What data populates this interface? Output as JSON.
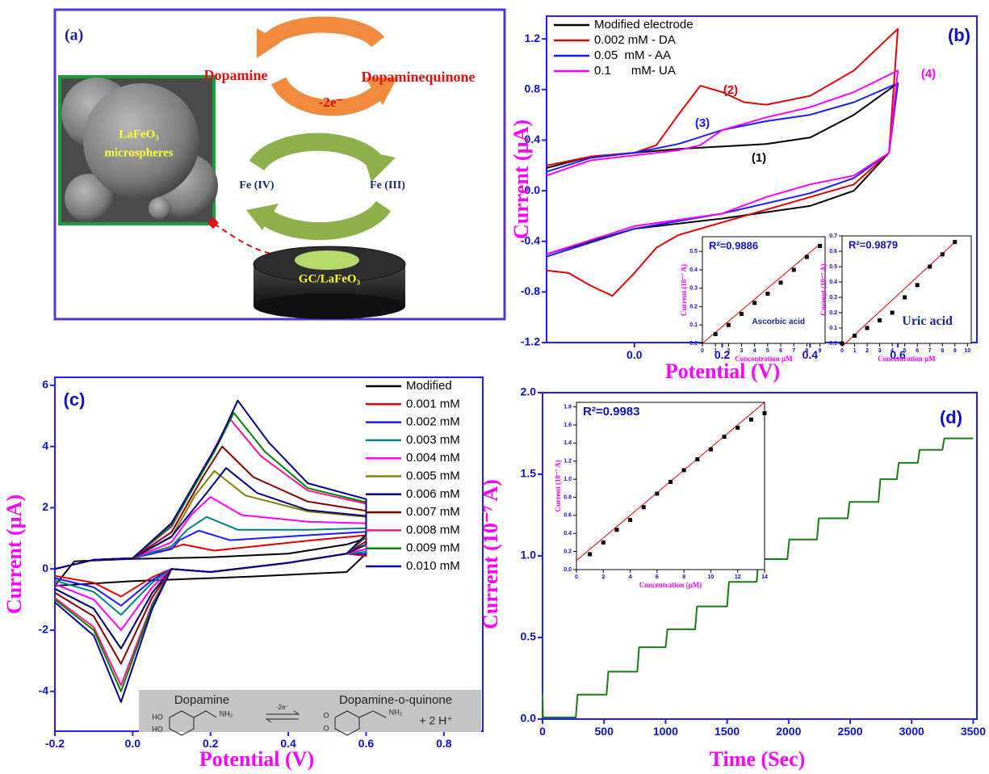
{
  "diagram": {
    "panel_label": "(a)",
    "sem_label": [
      "LaFeO₃",
      "microspheres"
    ],
    "reactant": "Dopamine",
    "product": "Dopaminequinone",
    "electrons": "-2e⁻",
    "oxidized": "Fe (IV)",
    "reduced": "Fe (III)",
    "electrode": "GC/LaFeO₃"
  },
  "chart_data": [
    {
      "type": "line",
      "panel_label": "(b)",
      "xlabel": "Potential (V)",
      "ylabel": "Current (µA)",
      "legend": "upper left",
      "xlim": [
        -0.2,
        0.78
      ],
      "ylim": [
        -1.2,
        1.38
      ],
      "xticks": [
        {
          "value": 0,
          "label": "0.0"
        },
        0.2,
        0.4,
        0.6
      ],
      "yticks": [
        -1.2,
        -0.8,
        -0.4,
        {
          "value": 0,
          "label": "0.0"
        },
        0.4,
        0.8,
        1.2
      ],
      "series": [
        {
          "name": "Modified electrode",
          "color": "#000000",
          "x": [
            -0.2,
            -0.1,
            0.1,
            0.3,
            0.4,
            0.5,
            0.6,
            0.58,
            0.5,
            0.4,
            0.2,
            0.0,
            -0.1,
            -0.2
          ],
          "values": [
            0.18,
            0.27,
            0.33,
            0.37,
            0.42,
            0.6,
            0.85,
            0.3,
            0.0,
            -0.12,
            -0.22,
            -0.3,
            -0.4,
            -0.5
          ]
        },
        {
          "name": "0.002 mM - DA",
          "color": "#e00000",
          "x": [
            -0.2,
            -0.1,
            0.0,
            0.05,
            0.1,
            0.15,
            0.2,
            0.25,
            0.3,
            0.4,
            0.5,
            0.6,
            0.58,
            0.5,
            0.4,
            0.3,
            0.2,
            0.1,
            0.05,
            0.0,
            -0.05,
            -0.1,
            -0.15,
            -0.2
          ],
          "values": [
            0.2,
            0.27,
            0.3,
            0.36,
            0.6,
            0.83,
            0.78,
            0.7,
            0.68,
            0.75,
            0.95,
            1.28,
            0.3,
            0.05,
            -0.05,
            -0.15,
            -0.25,
            -0.35,
            -0.45,
            -0.65,
            -0.83,
            -0.75,
            -0.65,
            -0.63
          ]
        },
        {
          "name": "0.05  mM - AA",
          "color": "#1a1aff",
          "x": [
            -0.2,
            -0.1,
            0.0,
            0.1,
            0.2,
            0.3,
            0.4,
            0.5,
            0.6,
            0.58,
            0.5,
            0.4,
            0.2,
            0.0,
            -0.2
          ],
          "values": [
            0.15,
            0.26,
            0.3,
            0.37,
            0.48,
            0.55,
            0.6,
            0.7,
            0.85,
            0.3,
            0.1,
            -0.02,
            -0.18,
            -0.3,
            -0.52
          ]
        },
        {
          "name": "0.1      mM- UA",
          "color": "#ff00ff",
          "x": [
            -0.2,
            -0.1,
            0.0,
            0.1,
            0.15,
            0.2,
            0.3,
            0.4,
            0.5,
            0.6,
            0.58,
            0.5,
            0.4,
            0.3,
            0.2,
            0.0,
            -0.2
          ],
          "values": [
            0.12,
            0.24,
            0.28,
            0.32,
            0.36,
            0.48,
            0.58,
            0.66,
            0.78,
            0.95,
            0.3,
            0.12,
            0.05,
            -0.05,
            -0.18,
            -0.28,
            -0.5
          ]
        }
      ],
      "annotations": [
        {
          "text": "(1)",
          "color": "#000000"
        },
        {
          "text": "(2)",
          "color": "#e00000"
        },
        {
          "text": "(3)",
          "color": "#1a1aff"
        },
        {
          "text": "(4)",
          "color": "#ff00ff"
        }
      ],
      "insets": [
        {
          "type": "scatter",
          "r_squared": "R²=0.9886",
          "label": "Ascorbic acid",
          "xlabel": "Concentration µM",
          "ylabel": "Current (10⁻⁷ A)",
          "xlim": [
            0,
            9.4
          ],
          "ylim": [
            0,
            0.58
          ],
          "xticks": [
            0,
            1,
            2,
            3,
            4,
            5,
            6,
            7,
            8,
            9
          ],
          "yticks": [
            {
              "value": 0,
              "label": "0.0"
            },
            0.1,
            0.2,
            0.3,
            0.4,
            0.5
          ],
          "color": "#000000",
          "x": [
            1,
            2,
            3,
            4,
            5,
            6,
            7,
            8,
            9
          ],
          "values": [
            0.05,
            0.1,
            0.16,
            0.22,
            0.27,
            0.33,
            0.4,
            0.47,
            0.53
          ],
          "fit": {
            "color": "#e00000",
            "x": [
              0,
              9
            ],
            "values": [
              0.0,
              0.54
            ]
          }
        },
        {
          "type": "scatter",
          "r_squared": "R²=0.9879",
          "label": "Uric acid",
          "xlabel": "Concentration µM",
          "ylabel": "Current (10⁻⁷ A)",
          "xlim": [
            0,
            10.3
          ],
          "ylim": [
            0,
            0.7
          ],
          "xticks": [
            0,
            1,
            2,
            3,
            4,
            5,
            6,
            7,
            8,
            9,
            10
          ],
          "yticks": [
            {
              "value": 0,
              "label": "0.0"
            },
            0.1,
            0.2,
            0.3,
            0.4,
            0.5,
            0.6,
            0.7
          ],
          "color": "#000000",
          "x": [
            0,
            1,
            2,
            3,
            4,
            5,
            6,
            7,
            8,
            9
          ],
          "values": [
            0.0,
            0.05,
            0.1,
            0.15,
            0.2,
            0.3,
            0.38,
            0.5,
            0.58,
            0.66
          ],
          "fit": {
            "color": "#e00000",
            "x": [
              0,
              9
            ],
            "values": [
              -0.02,
              0.66
            ]
          }
        }
      ]
    },
    {
      "type": "line",
      "panel_label": "(c)",
      "xlabel": "Potential (V)",
      "ylabel": "Current (µA)",
      "legend": "upper right",
      "xlim": [
        -0.2,
        0.9
      ],
      "ylim": [
        -5.3,
        6.26
      ],
      "xticks": [
        -0.2,
        {
          "value": 0,
          "label": "0.0"
        },
        0.2,
        0.4,
        0.6,
        0.8
      ],
      "yticks": [
        -4,
        -2,
        0,
        2,
        4,
        6
      ],
      "series": [
        {
          "name": "Modified",
          "color": "#000000",
          "x": [
            -0.2,
            -0.15,
            0.0,
            0.2,
            0.4,
            0.55,
            0.6,
            0.6,
            0.55,
            0.3,
            0.0,
            -0.2
          ],
          "values": [
            -0.55,
            0.25,
            0.33,
            0.38,
            0.5,
            0.8,
            1.0,
            0.5,
            -0.1,
            -0.25,
            -0.4,
            -0.55
          ]
        },
        {
          "name": "0.001 mM",
          "color": "#e00000",
          "x": [
            -0.2,
            -0.1,
            0.0,
            0.08,
            0.13,
            0.21,
            0.45,
            0.6,
            0.6,
            0.55,
            0.4,
            0.2,
            0.1,
            0.05,
            -0.03,
            -0.1,
            -0.2
          ],
          "values": [
            0.0,
            0.3,
            0.35,
            0.6,
            0.8,
            0.6,
            0.92,
            1.1,
            0.42,
            0.5,
            0.2,
            -0.1,
            0.0,
            -0.27,
            -0.9,
            -0.45,
            -0.23
          ]
        },
        {
          "name": "0.002 mM",
          "color": "#1a1aff",
          "x": [
            -0.2,
            -0.1,
            0.0,
            0.1,
            0.12,
            0.17,
            0.25,
            0.45,
            0.6,
            0.6,
            0.55,
            0.4,
            0.2,
            0.1,
            0.05,
            -0.03,
            -0.1,
            -0.2
          ],
          "values": [
            0.0,
            0.3,
            0.35,
            0.65,
            0.94,
            1.25,
            0.94,
            1.1,
            1.21,
            0.49,
            0.5,
            0.2,
            -0.1,
            0.0,
            -0.36,
            -1.2,
            -0.6,
            -0.3
          ]
        },
        {
          "name": "0.003 mM",
          "color": "#008080",
          "x": [
            -0.2,
            -0.1,
            0.0,
            0.1,
            0.14,
            0.19,
            0.27,
            0.45,
            0.6,
            0.6,
            0.55,
            0.4,
            0.2,
            0.1,
            0.05,
            -0.03,
            -0.1,
            -0.2
          ],
          "values": [
            0.0,
            0.3,
            0.35,
            0.74,
            1.28,
            1.7,
            1.28,
            1.28,
            1.33,
            0.56,
            0.5,
            0.2,
            -0.1,
            0.0,
            -0.45,
            -1.5,
            -0.75,
            -0.38
          ]
        },
        {
          "name": "0.004 mM",
          "color": "#ff00ff",
          "x": [
            -0.2,
            -0.1,
            0.0,
            0.1,
            0.15,
            0.2,
            0.28,
            0.45,
            0.6,
            0.6,
            0.55,
            0.4,
            0.2,
            0.1,
            0.05,
            -0.03,
            -0.1,
            -0.2
          ],
          "values": [
            0.0,
            0.3,
            0.35,
            0.87,
            1.76,
            2.35,
            1.76,
            1.54,
            1.49,
            0.65,
            0.5,
            0.2,
            -0.1,
            0.0,
            -0.6,
            -2.0,
            -1.0,
            -0.5
          ]
        },
        {
          "name": "0.005 mM",
          "color": "#808000",
          "x": [
            -0.2,
            -0.1,
            0.0,
            0.1,
            0.16,
            0.21,
            0.29,
            0.45,
            0.6,
            0.6,
            0.55,
            0.4,
            0.2,
            0.1,
            0.05,
            -0.03,
            -0.1,
            -0.2
          ],
          "values": [
            0.0,
            0.3,
            0.35,
            1.04,
            2.4,
            3.2,
            2.4,
            1.88,
            1.7,
            0.78,
            0.5,
            0.2,
            -0.1,
            0.0,
            -0.78,
            -2.6,
            -1.3,
            -0.65
          ]
        },
        {
          "name": "0.006 mM",
          "color": "#000080",
          "x": [
            -0.2,
            -0.1,
            0.0,
            0.1,
            0.19,
            0.24,
            0.32,
            0.45,
            0.6,
            0.6,
            0.55,
            0.4,
            0.2,
            0.1,
            0.05,
            -0.03,
            -0.1,
            -0.2
          ],
          "values": [
            0.0,
            0.3,
            0.35,
            1.06,
            2.48,
            3.3,
            2.48,
            1.92,
            1.73,
            0.8,
            0.5,
            0.2,
            -0.1,
            0.0,
            -0.78,
            -2.6,
            -1.3,
            -0.65
          ]
        },
        {
          "name": "0.007 mM",
          "color": "#800000",
          "x": [
            -0.2,
            -0.1,
            0.0,
            0.1,
            0.18,
            0.23,
            0.31,
            0.45,
            0.6,
            0.6,
            0.55,
            0.4,
            0.2,
            0.1,
            0.05,
            -0.03,
            -0.1,
            -0.2
          ],
          "values": [
            0.0,
            0.3,
            0.35,
            1.2,
            3.0,
            4.0,
            3.0,
            2.2,
            1.9,
            0.9,
            0.5,
            0.2,
            -0.1,
            0.0,
            -0.93,
            -3.1,
            -1.55,
            -0.78
          ]
        },
        {
          "name": "0.008 mM",
          "color": "#ff1493",
          "x": [
            -0.2,
            -0.1,
            0.0,
            0.1,
            0.2,
            0.25,
            0.33,
            0.45,
            0.6,
            0.6,
            0.55,
            0.4,
            0.2,
            0.1,
            0.05,
            -0.03,
            -0.1,
            -0.2
          ],
          "values": [
            0.0,
            0.3,
            0.35,
            1.38,
            3.68,
            4.9,
            3.68,
            2.56,
            2.13,
            1.04,
            0.5,
            0.2,
            -0.1,
            0.0,
            -1.14,
            -3.8,
            -1.9,
            -0.95
          ]
        },
        {
          "name": "0.009 mM",
          "color": "#008000",
          "x": [
            -0.2,
            -0.1,
            0.0,
            0.1,
            0.21,
            0.26,
            0.34,
            0.45,
            0.6,
            0.6,
            0.55,
            0.4,
            0.2,
            0.1,
            0.05,
            -0.03,
            -0.1,
            -0.2
          ],
          "values": [
            0.0,
            0.3,
            0.35,
            1.42,
            3.83,
            5.1,
            3.83,
            2.64,
            2.18,
            1.07,
            0.5,
            0.2,
            -0.1,
            0.0,
            -1.2,
            -4.0,
            -2.0,
            -1.0
          ]
        },
        {
          "name": "0.010 mM",
          "color": "#00008b",
          "x": [
            -0.2,
            -0.1,
            0.0,
            0.1,
            0.22,
            0.27,
            0.35,
            0.45,
            0.6,
            0.6,
            0.55,
            0.4,
            0.2,
            0.1,
            0.05,
            -0.03,
            -0.1,
            -0.2
          ],
          "values": [
            0.0,
            0.3,
            0.35,
            1.5,
            4.13,
            5.5,
            4.13,
            2.8,
            2.28,
            1.13,
            0.5,
            0.2,
            -0.1,
            0.0,
            -1.31,
            -4.35,
            -2.18,
            -1.09
          ]
        }
      ],
      "scheme": {
        "reactant": "Dopamine",
        "product": "Dopamine-o-quinone",
        "electrons": "-2e⁻",
        "protons": "+ 2 H⁺",
        "groups": [
          "HO",
          "HO",
          "NH₂",
          "O",
          "O",
          "NH₂"
        ]
      }
    },
    {
      "type": "line",
      "panel_label": "(d)",
      "xlabel": "Time (Sec)",
      "ylabel": "Current (10⁻⁷ A)",
      "xlim": [
        0,
        3530
      ],
      "ylim": [
        0,
        2.0
      ],
      "xticks": [
        0,
        500,
        1000,
        1500,
        2000,
        2500,
        3000,
        3500
      ],
      "yticks": [
        {
          "value": 0,
          "label": "0.0"
        },
        0.5,
        {
          "value": 1,
          "label": "1.0"
        },
        1.5,
        {
          "value": 2,
          "label": "2.0"
        }
      ],
      "series": [
        {
          "color": "#1a7a1a",
          "x": [
            0,
            3,
            270,
            285,
            520,
            535,
            770,
            785,
            1000,
            1015,
            1240,
            1255,
            1500,
            1515,
            1740,
            1755,
            1990,
            2005,
            2230,
            2245,
            2480,
            2495,
            2730,
            2745,
            2880,
            2895,
            3050,
            3065,
            3250,
            3265,
            3500
          ],
          "values": [
            0.15,
            0.01,
            0.01,
            0.15,
            0.15,
            0.29,
            0.29,
            0.44,
            0.44,
            0.55,
            0.55,
            0.69,
            0.69,
            0.84,
            0.84,
            0.98,
            0.98,
            1.1,
            1.1,
            1.23,
            1.23,
            1.33,
            1.33,
            1.47,
            1.47,
            1.57,
            1.57,
            1.65,
            1.65,
            1.72,
            1.72
          ]
        }
      ],
      "insets": [
        {
          "type": "scatter",
          "r_squared": "R²=0.9983",
          "xlabel": "Concentration (µM)",
          "ylabel": "Current (10⁻⁷ A)",
          "xlim": [
            0,
            14
          ],
          "ylim": [
            0,
            1.85
          ],
          "xticks": [
            0,
            2,
            4,
            6,
            8,
            10,
            12,
            14
          ],
          "yticks": [
            {
              "value": 0,
              "label": "0.0"
            },
            0.2,
            0.4,
            0.6,
            0.8,
            {
              "value": 1,
              "label": "1.0"
            },
            1.2,
            1.4,
            1.6,
            1.8
          ],
          "color": "#000000",
          "x": [
            1,
            2,
            3,
            4,
            5,
            6,
            7,
            8,
            9,
            10,
            11,
            12,
            13,
            14
          ],
          "values": [
            0.17,
            0.3,
            0.44,
            0.55,
            0.69,
            0.84,
            0.97,
            1.1,
            1.22,
            1.33,
            1.47,
            1.57,
            1.66,
            1.73
          ],
          "fit": {
            "color": "#e00000",
            "x": [
              0,
              14
            ],
            "values": [
              0.1,
              1.85
            ]
          }
        }
      ]
    }
  ]
}
